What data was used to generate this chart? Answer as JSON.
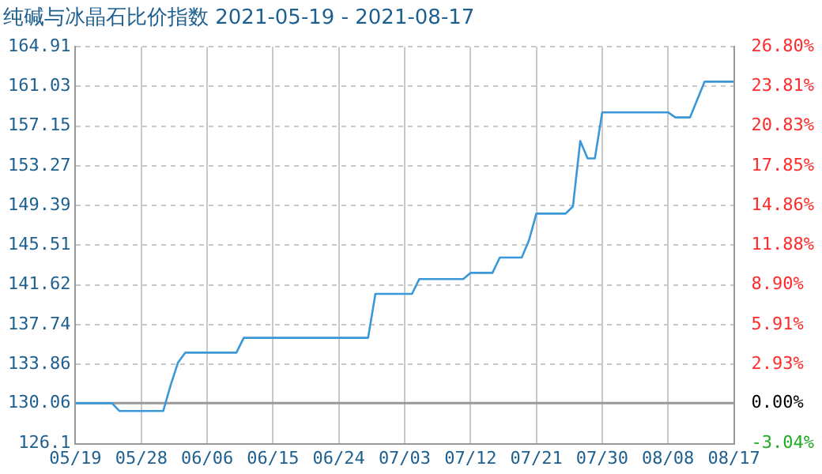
{
  "chart_data": {
    "type": "line",
    "title": "纯碱与冰晶石比价指数 2021-05-19 - 2021-08-17",
    "x": [
      "2021-05-19",
      "2021-05-24",
      "2021-05-25",
      "2021-05-31",
      "2021-06-01",
      "2021-06-02",
      "2021-06-03",
      "2021-06-10",
      "2021-06-11",
      "2021-06-28",
      "2021-06-29",
      "2021-07-04",
      "2021-07-05",
      "2021-07-11",
      "2021-07-12",
      "2021-07-15",
      "2021-07-16",
      "2021-07-19",
      "2021-07-20",
      "2021-07-21",
      "2021-07-25",
      "2021-07-26",
      "2021-07-27",
      "2021-07-28",
      "2021-07-29",
      "2021-07-30",
      "2021-08-08",
      "2021-08-09",
      "2021-08-11",
      "2021-08-13",
      "2021-08-17"
    ],
    "series": [
      {
        "color": "#3a98d8",
        "values": [
          130.06,
          130.06,
          129.3,
          129.3,
          131.8,
          134.0,
          135.0,
          135.0,
          136.45,
          136.45,
          140.75,
          140.75,
          142.2,
          142.2,
          142.8,
          142.8,
          144.3,
          144.3,
          146.0,
          148.6,
          148.6,
          149.3,
          155.7,
          154.0,
          154.0,
          158.5,
          158.5,
          158.0,
          158.0,
          161.5,
          161.5
        ]
      }
    ],
    "xlim": [
      "2021-05-19",
      "2021-08-17"
    ],
    "xticks": [
      {
        "value": "2021-05-19",
        "label": "05/19"
      },
      {
        "value": "2021-05-28",
        "label": "05/28"
      },
      {
        "value": "2021-06-06",
        "label": "06/06"
      },
      {
        "value": "2021-06-15",
        "label": "06/15"
      },
      {
        "value": "2021-06-24",
        "label": "06/24"
      },
      {
        "value": "2021-07-03",
        "label": "07/03"
      },
      {
        "value": "2021-07-12",
        "label": "07/12"
      },
      {
        "value": "2021-07-21",
        "label": "07/21"
      },
      {
        "value": "2021-07-30",
        "label": "07/30"
      },
      {
        "value": "2021-08-08",
        "label": "08/08"
      },
      {
        "value": "2021-08-17",
        "label": "08/17"
      }
    ],
    "ylim": [
      126.1,
      164.91
    ],
    "yticks": [
      126.1,
      130.06,
      133.86,
      137.74,
      141.62,
      145.51,
      149.39,
      153.27,
      157.15,
      161.03,
      164.91
    ],
    "y2lim": [
      -3.04,
      26.8
    ],
    "y2ticks": [
      {
        "value": -3.04,
        "label": "-3.04%"
      },
      {
        "value": 0,
        "label": "0.00%"
      },
      {
        "value": 2.93,
        "label": "2.93%"
      },
      {
        "value": 5.91,
        "label": "5.91%"
      },
      {
        "value": 8.9,
        "label": "8.90%"
      },
      {
        "value": 11.88,
        "label": "11.88%"
      },
      {
        "value": 14.86,
        "label": "14.86%"
      },
      {
        "value": 17.85,
        "label": "17.85%"
      },
      {
        "value": 20.83,
        "label": "20.83%"
      },
      {
        "value": 23.81,
        "label": "23.81%"
      },
      {
        "value": 26.8,
        "label": "26.80%"
      }
    ],
    "ref_lines": [
      {
        "axis": "y",
        "value": 130.06,
        "color": "#999999"
      }
    ],
    "grid": true,
    "legend": false,
    "marker": "none",
    "line_style": "solid"
  }
}
